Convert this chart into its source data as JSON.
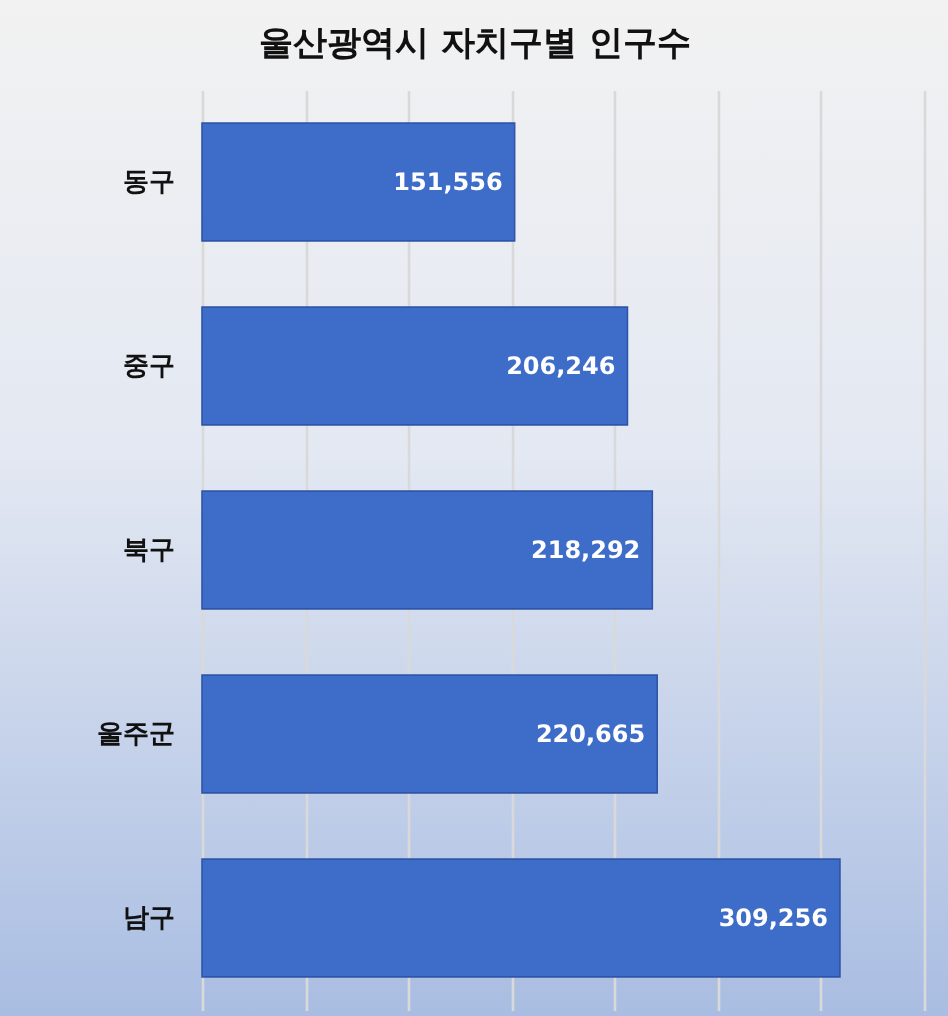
{
  "chart_data": {
    "type": "bar",
    "orientation": "horizontal",
    "title": "울산광역시 자치구별 인구수",
    "categories": [
      "동구",
      "중구",
      "북구",
      "울주군",
      "남구"
    ],
    "values": [
      151556,
      206246,
      218292,
      220665,
      309256
    ],
    "value_labels": [
      "151,556",
      "206,246",
      "218,292",
      "220,665",
      "309,256"
    ],
    "color": "#3e6cc9",
    "grid": "x",
    "tick_labels": "y"
  }
}
